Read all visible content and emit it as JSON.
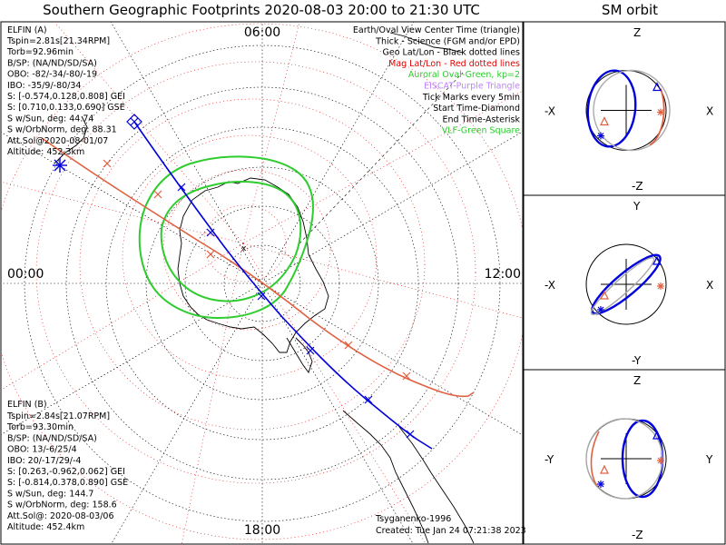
{
  "title": "Southern Geographic Footprints 2020-08-03 20:00 to 21:30 UTC",
  "orbit_title": "SM orbit",
  "clock_labels": {
    "top": "06:00",
    "left": "00:00",
    "right": "12:00",
    "bottom": "18:00"
  },
  "legend": [
    {
      "text": "Earth/Oval View Center Time (triangle)",
      "color": "#000000"
    },
    {
      "text": "Thick - Science (FGM and/or EPD)",
      "color": "#000000"
    },
    {
      "text": "Geo Lat/Lon - Black dotted lines",
      "color": "#000000"
    },
    {
      "text": "Mag Lat/Lon - Red dotted lines",
      "color": "#e00000"
    },
    {
      "text": "Auroral Oval-Green, kp=2",
      "color": "#2ecc2e"
    },
    {
      "text": "EISCAT-Purple Triangle",
      "color": "#c080ff"
    },
    {
      "text": "Tick Marks every 5min",
      "color": "#000000"
    },
    {
      "text": "Start Time-Diamond",
      "color": "#000000"
    },
    {
      "text": "End Time-Asterisk",
      "color": "#000000"
    },
    {
      "text": "VLF-Green Square",
      "color": "#2ecc2e"
    }
  ],
  "elfin_a": {
    "header": "ELFIN (A)",
    "color": "#0000dd",
    "lines": [
      "Tspin=2.81s[21.34RPM]",
      "Torb=92.96min",
      "B/SP: (NA/ND/SD/SA)",
      "OBO: -82/-34/-80/-19",
      "IBO: -35/9/-80/34",
      "S: [-0.574,0.128,0.808] GEI",
      "S: [0.710,0.133,0.690] GSE",
      "S w/Sun, deg: 44.74",
      "S w/OrbNorm, deg: 88.31",
      "Att.Sol@2020-08-01/07",
      "Altitude: 452.3km"
    ]
  },
  "elfin_b": {
    "header": "ELFIN (B)",
    "color": "#e06040",
    "lines": [
      "Tspin=2.84s[21.07RPM]",
      "Torb=93.30min",
      "B/SP: (NA/ND/SD/SA)",
      "OBO: 13/-6/25/4",
      "IBO: 20/-17/29/-4",
      "S: [0.263,-0.962,0.062] GEI",
      "S: [-0.814,0.378,0.890] GSE",
      "S w/Sun, deg: 144.7",
      "S w/OrbNorm, deg: 158.6",
      "Att.Sol@: 2020-08-03/06",
      "Altitude: 452.4km"
    ]
  },
  "footer": {
    "author": "Tsyganenko-1996",
    "created": "Created: Tue Jan 24 07:21:38 2023"
  },
  "orbit_panels": [
    {
      "top": "Z",
      "bottom": "-Z",
      "left": "-X",
      "right": "X"
    },
    {
      "top": "Y",
      "bottom": "-Y",
      "left": "-X",
      "right": "X"
    },
    {
      "top": "Z",
      "bottom": "-Z",
      "left": "-Y",
      "right": "Y"
    }
  ],
  "colors": {
    "elfin_a": "#0000dd",
    "elfin_b": "#e06040",
    "oval": "#2ecc2e",
    "mag_grid": "#e00000",
    "geo_grid": "#000000"
  }
}
